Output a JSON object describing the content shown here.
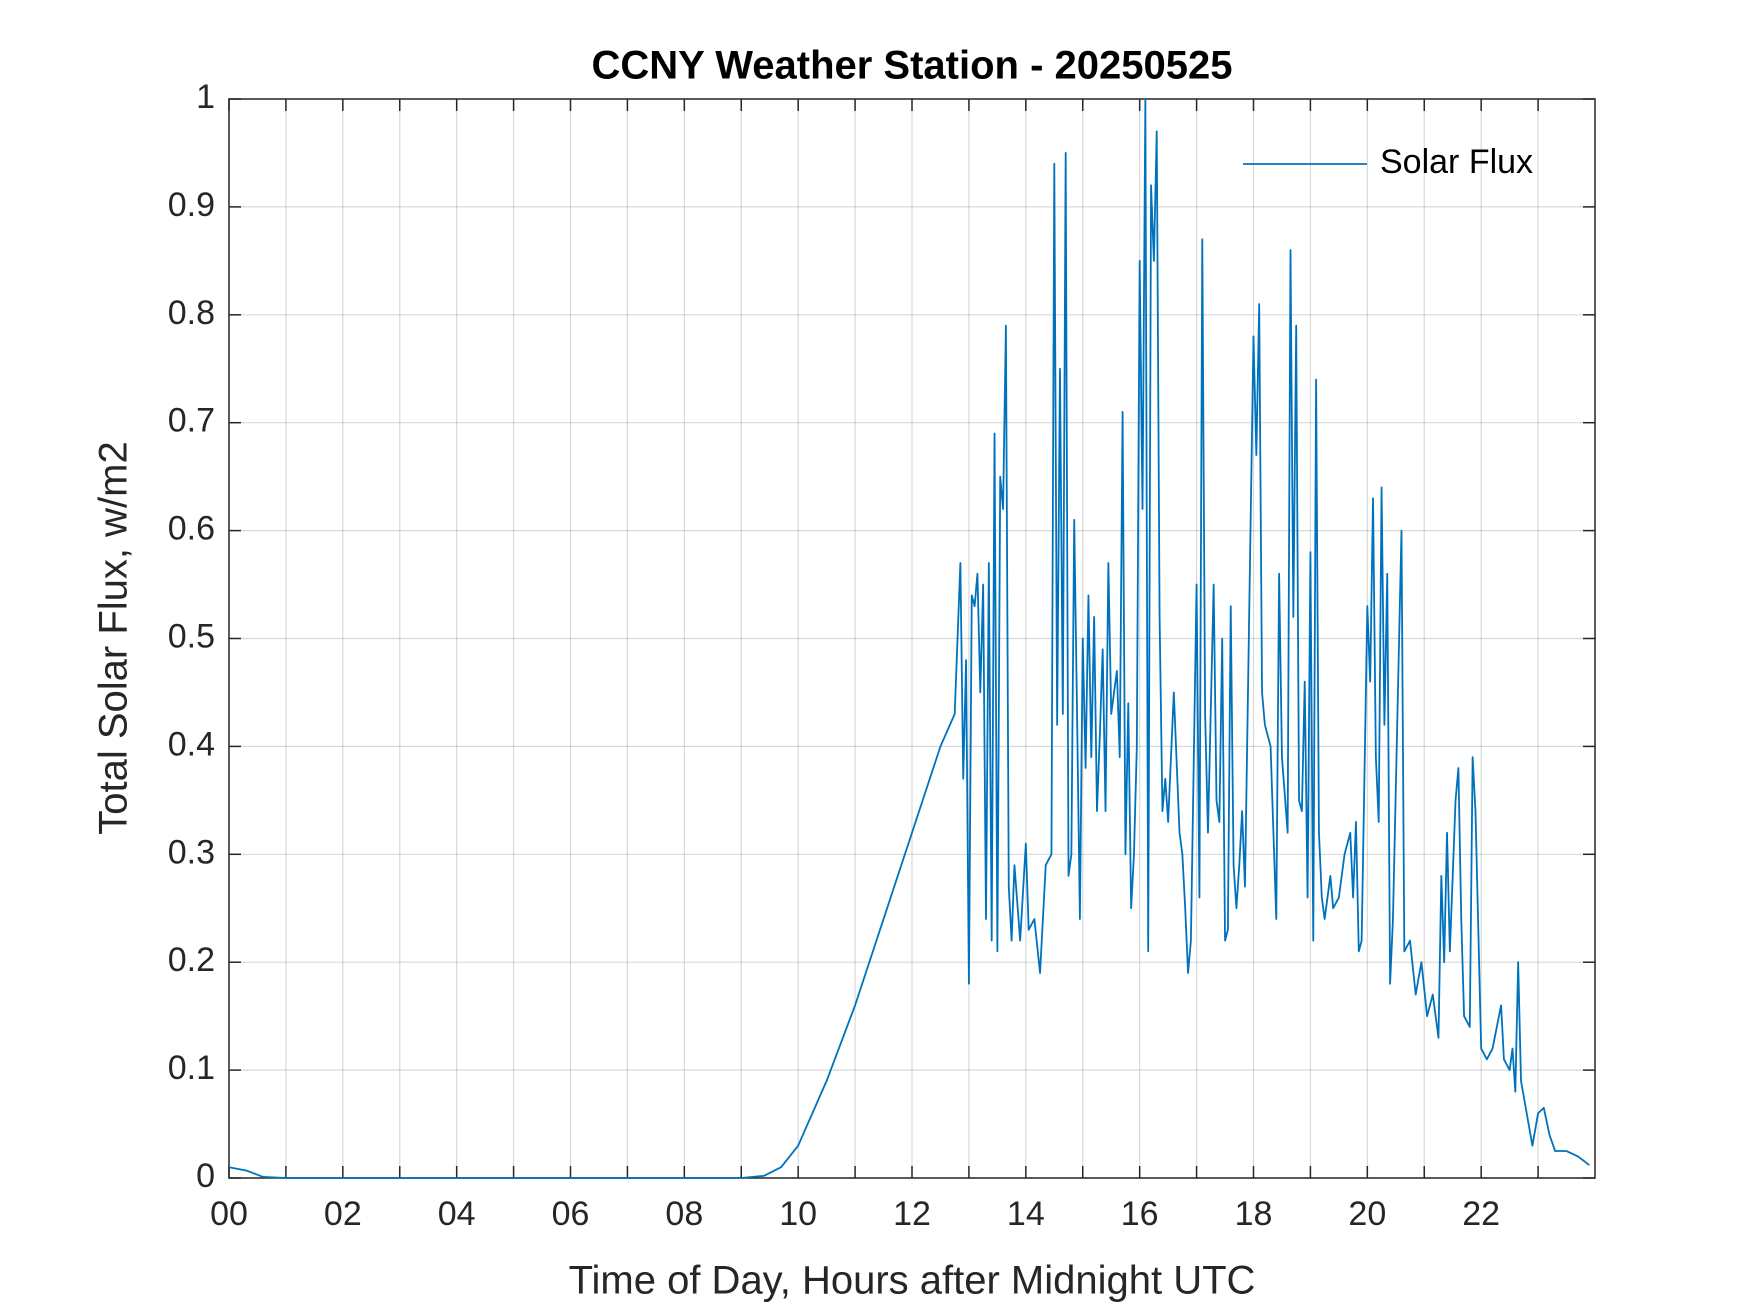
{
  "chart_data": {
    "type": "line",
    "title": "CCNY Weather Station - 20250525",
    "xlabel": "Time of Day, Hours after Midnight UTC",
    "ylabel": "Total Solar Flux, w/m2",
    "xlim": [
      0,
      24
    ],
    "ylim": [
      0,
      1
    ],
    "xticks": [
      {
        "value": 0,
        "label": "00"
      },
      {
        "value": 2,
        "label": "02"
      },
      {
        "value": 4,
        "label": "04"
      },
      {
        "value": 6,
        "label": "06"
      },
      {
        "value": 8,
        "label": "08"
      },
      10,
      12,
      14,
      16,
      18,
      20,
      22
    ],
    "minor_xticks": [
      1,
      3,
      5,
      7,
      9,
      11,
      13,
      15,
      17,
      19,
      21,
      23
    ],
    "yticks": [
      0,
      0.1,
      0.2,
      0.3,
      0.4,
      0.5,
      0.6,
      0.7,
      0.8,
      0.9,
      1
    ],
    "grid": true,
    "legend": "upper right",
    "x": [
      0,
      0.3,
      0.6,
      1,
      9,
      9.4,
      9.7,
      10,
      10.5,
      11,
      11.5,
      12,
      12.5,
      12.75,
      12.8,
      12.85,
      12.9,
      12.95,
      13.0,
      13.05,
      13.1,
      13.15,
      13.2,
      13.25,
      13.3,
      13.35,
      13.4,
      13.45,
      13.5,
      13.55,
      13.6,
      13.65,
      13.7,
      13.75,
      13.8,
      13.9,
      14.0,
      14.05,
      14.15,
      14.25,
      14.35,
      14.45,
      14.5,
      14.55,
      14.6,
      14.65,
      14.7,
      14.75,
      14.8,
      14.85,
      14.9,
      14.95,
      15.0,
      15.05,
      15.1,
      15.15,
      15.2,
      15.25,
      15.3,
      15.35,
      15.4,
      15.45,
      15.5,
      15.6,
      15.65,
      15.7,
      15.75,
      15.8,
      15.85,
      15.9,
      15.95,
      16.0,
      16.05,
      16.1,
      16.15,
      16.2,
      16.25,
      16.3,
      16.35,
      16.4,
      16.45,
      16.5,
      16.6,
      16.7,
      16.75,
      16.8,
      16.85,
      16.9,
      17.0,
      17.05,
      17.1,
      17.15,
      17.2,
      17.3,
      17.35,
      17.4,
      17.45,
      17.5,
      17.55,
      17.6,
      17.65,
      17.7,
      17.75,
      17.8,
      17.85,
      18.0,
      18.05,
      18.1,
      18.15,
      18.2,
      18.3,
      18.4,
      18.45,
      18.5,
      18.6,
      18.65,
      18.7,
      18.75,
      18.8,
      18.85,
      18.9,
      18.95,
      19.0,
      19.05,
      19.1,
      19.15,
      19.2,
      19.25,
      19.35,
      19.4,
      19.5,
      19.6,
      19.7,
      19.75,
      19.8,
      19.85,
      19.9,
      20.0,
      20.05,
      20.1,
      20.15,
      20.2,
      20.25,
      20.3,
      20.35,
      20.4,
      20.45,
      20.6,
      20.65,
      20.75,
      20.85,
      20.95,
      21.05,
      21.15,
      21.25,
      21.3,
      21.35,
      21.4,
      21.45,
      21.55,
      21.6,
      21.65,
      21.7,
      21.8,
      21.85,
      21.9,
      22.0,
      22.1,
      22.2,
      22.35,
      22.4,
      22.5,
      22.55,
      22.6,
      22.65,
      22.7,
      22.8,
      22.9,
      23.0,
      23.1,
      23.2,
      23.3,
      23.5,
      23.7,
      23.9
    ],
    "series": [
      {
        "name": "Solar Flux",
        "color": "#0072bd",
        "values": [
          0.01,
          0.007,
          0.001,
          0,
          0,
          0.002,
          0.01,
          0.03,
          0.09,
          0.16,
          0.24,
          0.32,
          0.4,
          0.43,
          0.5,
          0.57,
          0.37,
          0.48,
          0.18,
          0.54,
          0.53,
          0.56,
          0.45,
          0.55,
          0.24,
          0.57,
          0.22,
          0.69,
          0.21,
          0.65,
          0.62,
          0.79,
          0.27,
          0.22,
          0.29,
          0.22,
          0.31,
          0.23,
          0.24,
          0.19,
          0.29,
          0.3,
          0.94,
          0.42,
          0.75,
          0.43,
          0.95,
          0.28,
          0.3,
          0.61,
          0.43,
          0.24,
          0.5,
          0.38,
          0.54,
          0.39,
          0.52,
          0.34,
          0.41,
          0.49,
          0.34,
          0.57,
          0.43,
          0.47,
          0.39,
          0.71,
          0.3,
          0.44,
          0.25,
          0.3,
          0.4,
          0.85,
          0.62,
          1.0,
          0.21,
          0.92,
          0.85,
          0.97,
          0.52,
          0.34,
          0.37,
          0.33,
          0.45,
          0.32,
          0.3,
          0.25,
          0.19,
          0.22,
          0.55,
          0.26,
          0.87,
          0.43,
          0.32,
          0.55,
          0.35,
          0.33,
          0.5,
          0.22,
          0.23,
          0.53,
          0.29,
          0.25,
          0.29,
          0.34,
          0.27,
          0.78,
          0.67,
          0.81,
          0.45,
          0.42,
          0.4,
          0.24,
          0.56,
          0.39,
          0.32,
          0.86,
          0.52,
          0.79,
          0.35,
          0.34,
          0.46,
          0.26,
          0.58,
          0.22,
          0.74,
          0.32,
          0.26,
          0.24,
          0.28,
          0.25,
          0.26,
          0.3,
          0.32,
          0.26,
          0.33,
          0.21,
          0.22,
          0.53,
          0.46,
          0.63,
          0.39,
          0.33,
          0.64,
          0.42,
          0.56,
          0.18,
          0.24,
          0.6,
          0.21,
          0.22,
          0.17,
          0.2,
          0.15,
          0.17,
          0.13,
          0.28,
          0.2,
          0.32,
          0.21,
          0.35,
          0.38,
          0.24,
          0.15,
          0.14,
          0.39,
          0.34,
          0.12,
          0.11,
          0.12,
          0.16,
          0.11,
          0.1,
          0.12,
          0.08,
          0.2,
          0.09,
          0.06,
          0.03,
          0.06,
          0.065,
          0.04,
          0.025,
          0.025,
          0.02,
          0.012
        ]
      }
    ]
  }
}
